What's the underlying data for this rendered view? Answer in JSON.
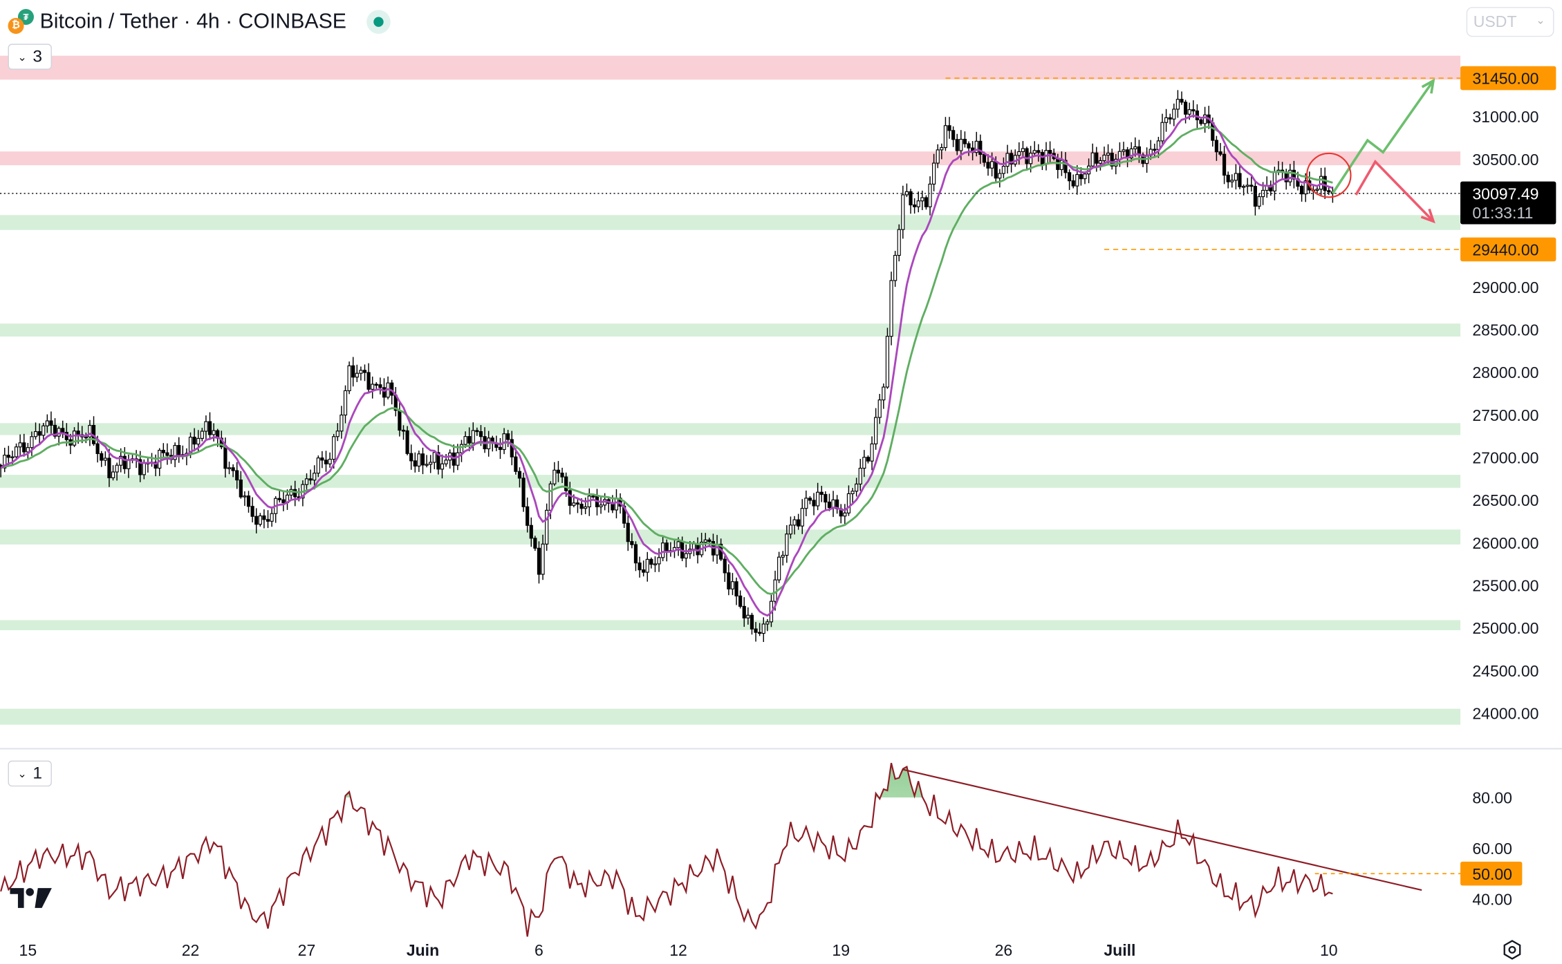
{
  "header": {
    "title": "Bitcoin / Tether · 4h · COINBASE",
    "base_icon": "bitcoin-icon",
    "quote_icon": "tether-icon",
    "status": "market-open-dot",
    "status_color": "#089981",
    "main_pane_collapse": "3",
    "rsi_pane_collapse": "1",
    "currency_select": "USDT"
  },
  "colors": {
    "resistance_zone": "#f9d0d6",
    "support_zone": "#d6efd9",
    "fast_ma": "#ab47bc",
    "slow_ma": "#5fae62",
    "rsi_line": "#8d1c25",
    "level_label": "#ff9800",
    "bull_arrow": "#6cbf6e",
    "bear_arrow": "#ef5a6f",
    "last_price_bg": "#000000"
  },
  "price_axis": {
    "ticks": [
      "31000.00",
      "30500.00",
      "29000.00",
      "28500.00",
      "28000.00",
      "27500.00",
      "27000.00",
      "26500.00",
      "26000.00",
      "25500.00",
      "25000.00",
      "24500.00",
      "24000.00"
    ],
    "tick_values": [
      31000,
      30500,
      29000,
      28500,
      28000,
      27500,
      27000,
      26500,
      26000,
      25500,
      25000,
      24500,
      24000
    ],
    "level_high": {
      "label": "31450.00",
      "value": 31450
    },
    "level_low": {
      "label": "29440.00",
      "value": 29440
    },
    "last_price": {
      "label": "30097.49",
      "value": 30097.49,
      "countdown": "01:33:11"
    }
  },
  "rsi_axis": {
    "ticks": [
      "80.00",
      "60.00",
      "40.00"
    ],
    "tick_values": [
      80,
      60,
      40
    ],
    "level": {
      "label": "50.00",
      "value": 50
    }
  },
  "time_axis": {
    "ticks": [
      {
        "label": "15",
        "date": "2023-05-15",
        "bold": false
      },
      {
        "label": "22",
        "date": "2023-05-22",
        "bold": false
      },
      {
        "label": "27",
        "date": "2023-05-27",
        "bold": false
      },
      {
        "label": "Juin",
        "date": "2023-06-01",
        "bold": true
      },
      {
        "label": "6",
        "date": "2023-06-06",
        "bold": false
      },
      {
        "label": "12",
        "date": "2023-06-12",
        "bold": false
      },
      {
        "label": "19",
        "date": "2023-06-19",
        "bold": false
      },
      {
        "label": "26",
        "date": "2023-06-26",
        "bold": false
      },
      {
        "label": "Juill",
        "date": "2023-07-01",
        "bold": true
      },
      {
        "label": "10",
        "date": "2023-07-10",
        "bold": false
      }
    ]
  },
  "chart_data": {
    "type": "candlestick",
    "interval": "4h",
    "zones": [
      {
        "kind": "resistance",
        "from": 31432,
        "to": 31713
      },
      {
        "kind": "resistance",
        "from": 30428,
        "to": 30590
      },
      {
        "kind": "support",
        "from": 29668,
        "to": 29843
      },
      {
        "kind": "support",
        "from": 28418,
        "to": 28570
      },
      {
        "kind": "support",
        "from": 27262,
        "to": 27402
      },
      {
        "kind": "support",
        "from": 26643,
        "to": 26795
      },
      {
        "kind": "support",
        "from": 25978,
        "to": 26153
      },
      {
        "kind": "support",
        "from": 24972,
        "to": 25090
      },
      {
        "kind": "support",
        "from": 23863,
        "to": 24050
      }
    ],
    "level_lines": [
      {
        "value": 31450,
        "from": "2023-06-23T12:00"
      },
      {
        "value": 29440,
        "from": "2023-06-30T08:00"
      }
    ],
    "price_path": [
      [
        "2023-05-13T20:00",
        26876,
        43
      ],
      [
        "2023-05-15T12:00",
        27340,
        57
      ],
      [
        "2023-05-17T16:00",
        27226,
        57
      ],
      [
        "2023-05-18T12:00",
        26876,
        43
      ],
      [
        "2023-05-21T00:00",
        26990,
        49
      ],
      [
        "2023-05-23T00:00",
        27340,
        63
      ],
      [
        "2023-05-24T12:00",
        26350,
        35
      ],
      [
        "2023-05-25T04:00",
        26290,
        31
      ],
      [
        "2023-05-26T16:00",
        26640,
        53
      ],
      [
        "2023-05-28T00:00",
        27000,
        69
      ],
      [
        "2023-05-28T20:00",
        27990,
        80
      ],
      [
        "2023-05-30T12:00",
        27810,
        61
      ],
      [
        "2023-05-31T08:00",
        27050,
        49
      ],
      [
        "2023-06-01T16:00",
        26880,
        39
      ],
      [
        "2023-06-03T00:00",
        27230,
        57
      ],
      [
        "2023-06-04T16:00",
        27170,
        51
      ],
      [
        "2023-06-05T12:00",
        26290,
        31
      ],
      [
        "2023-06-06T00:00",
        25710,
        33
      ],
      [
        "2023-06-06T16:00",
        26880,
        59
      ],
      [
        "2023-06-07T16:00",
        26410,
        45
      ],
      [
        "2023-06-09T08:00",
        26520,
        49
      ],
      [
        "2023-06-10T04:00",
        25710,
        33
      ],
      [
        "2023-06-12T00:00",
        25940,
        45
      ],
      [
        "2023-06-13T16:00",
        25940,
        57
      ],
      [
        "2023-06-15T00:00",
        25000,
        31
      ],
      [
        "2023-06-15T16:00",
        25000,
        33
      ],
      [
        "2023-06-16T16:00",
        26060,
        65
      ],
      [
        "2023-06-17T12:00",
        26520,
        65
      ],
      [
        "2023-06-19T04:00",
        26410,
        57
      ],
      [
        "2023-06-20T04:00",
        26990,
        69
      ],
      [
        "2023-06-20T20:00",
        27930,
        84
      ],
      [
        "2023-06-21T04:00",
        28980,
        88
      ],
      [
        "2023-06-21T16:00",
        30030,
        91
      ],
      [
        "2023-06-22T16:00",
        30030,
        78
      ],
      [
        "2023-06-23T12:00",
        30850,
        71
      ],
      [
        "2023-06-25T16:00",
        30380,
        57
      ],
      [
        "2023-06-27T08:00",
        30620,
        59
      ],
      [
        "2023-06-29T04:00",
        30260,
        49
      ],
      [
        "2023-06-30T08:00",
        30550,
        61
      ],
      [
        "2023-07-02T04:00",
        30550,
        53
      ],
      [
        "2023-07-03T16:00",
        31200,
        67
      ],
      [
        "2023-07-04T20:00",
        30850,
        51
      ],
      [
        "2023-07-05T12:00",
        30380,
        43
      ],
      [
        "2023-07-06T20:00",
        30030,
        37
      ],
      [
        "2023-07-07T16:00",
        30320,
        47
      ],
      [
        "2023-07-09T00:00",
        30200,
        47
      ],
      [
        "2023-07-10T04:00",
        30097,
        43
      ]
    ],
    "rsi_trendline": [
      [
        "2023-06-21T16:00",
        91
      ],
      [
        "2023-07-14T00:00",
        43.5
      ]
    ],
    "projection_up": [
      [
        "2023-07-10T04:00",
        30097
      ],
      [
        "2023-07-11T16:00",
        30720
      ],
      [
        "2023-07-12T08:00",
        30580
      ],
      [
        "2023-07-14T12:00",
        31420
      ]
    ],
    "projection_down": [
      [
        "2023-07-11T04:00",
        30080
      ],
      [
        "2023-07-12T00:00",
        30470
      ],
      [
        "2023-07-14T12:00",
        29770
      ]
    ],
    "highlight_circle": {
      "date": "2023-07-10T00:00",
      "price": 30310
    }
  }
}
